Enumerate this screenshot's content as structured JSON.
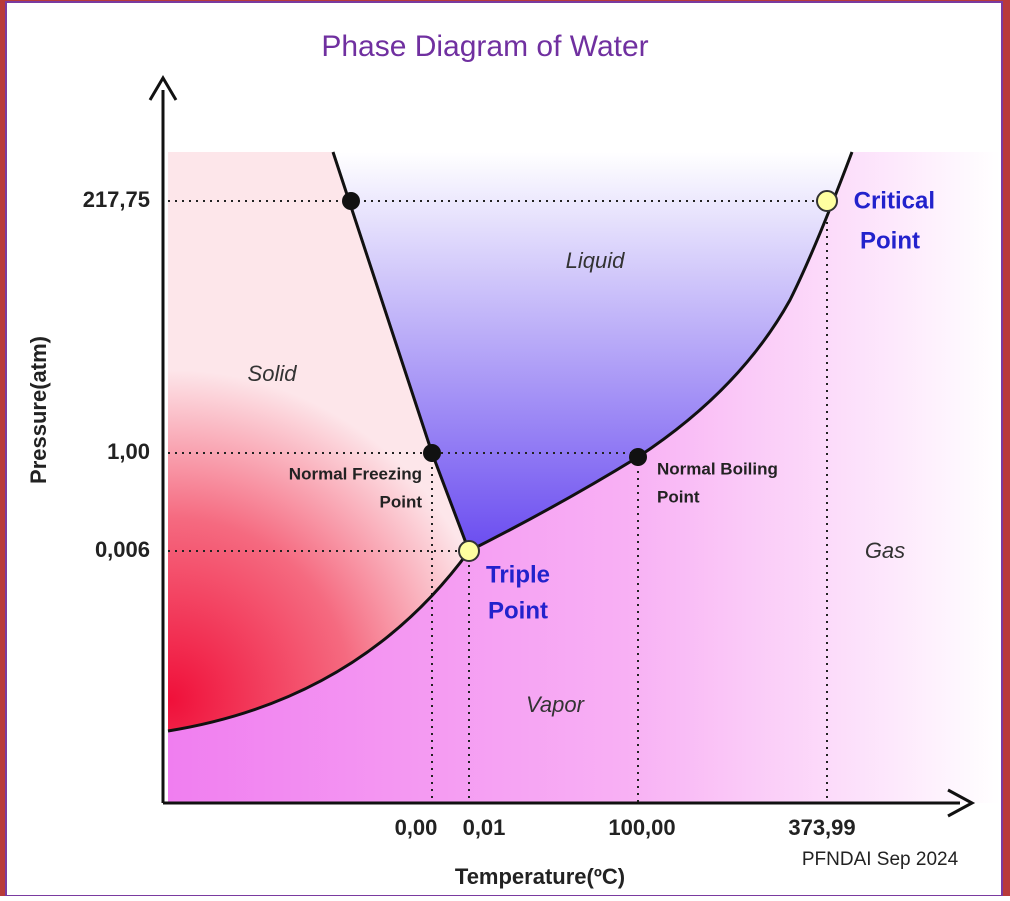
{
  "title": "Phase Diagram of Water",
  "y_axis": {
    "label": "Pressure(atm)",
    "ticks": [
      "217,75",
      "1,00",
      "0,006"
    ]
  },
  "x_axis": {
    "label": "Temperature(ºC)",
    "ticks": [
      "0,00",
      "0,01",
      "100,00",
      "373,99"
    ]
  },
  "regions": {
    "solid": "Solid",
    "liquid": "Liquid",
    "gas": "Gas",
    "vapor": "Vapor"
  },
  "points": {
    "critical": [
      "Critical",
      "Point"
    ],
    "triple": [
      "Triple",
      "Point"
    ],
    "freezing": [
      "Normal Freezing",
      "Point"
    ],
    "boiling": [
      "Normal Boiling",
      "Point"
    ]
  },
  "credit": "PFNDAI Sep 2024"
}
